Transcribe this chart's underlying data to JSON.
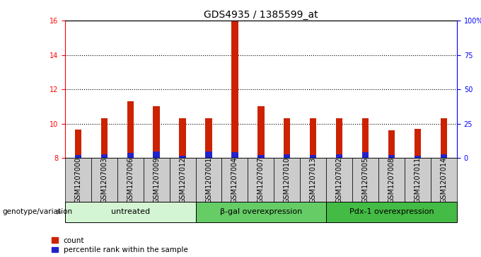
{
  "title": "GDS4935 / 1385599_at",
  "samples": [
    "GSM1207000",
    "GSM1207003",
    "GSM1207006",
    "GSM1207009",
    "GSM1207012",
    "GSM1207001",
    "GSM1207004",
    "GSM1207007",
    "GSM1207010",
    "GSM1207013",
    "GSM1207002",
    "GSM1207005",
    "GSM1207008",
    "GSM1207011",
    "GSM1207014"
  ],
  "counts": [
    9.65,
    10.3,
    11.3,
    11.0,
    10.3,
    10.3,
    16.0,
    11.0,
    10.3,
    10.3,
    10.3,
    10.3,
    9.6,
    9.7,
    10.3
  ],
  "percentile_tops": [
    8.18,
    8.22,
    8.28,
    8.38,
    8.12,
    8.38,
    8.32,
    8.18,
    8.22,
    8.18,
    8.22,
    8.32,
    8.18,
    8.12,
    8.22
  ],
  "base": 8.0,
  "ylim_left": [
    8,
    16
  ],
  "yticks_left": [
    8,
    10,
    12,
    14,
    16
  ],
  "ylim_right": [
    0,
    100
  ],
  "yticks_right": [
    0,
    25,
    50,
    75,
    100
  ],
  "groups": [
    {
      "label": "untreated",
      "start": 0,
      "end": 5,
      "color": "#d4f5d4"
    },
    {
      "label": "β-gal overexpression",
      "start": 5,
      "end": 10,
      "color": "#66cc66"
    },
    {
      "label": "Pdx-1 overexpression",
      "start": 10,
      "end": 15,
      "color": "#44bb44"
    }
  ],
  "bar_color": "#cc2200",
  "percentile_color": "#2222cc",
  "bar_width": 0.25,
  "tick_bg_color": "#cccccc",
  "group_label_y": "genotype/variation",
  "legend_count": "count",
  "legend_percentile": "percentile rank within the sample",
  "grid_color": "#000000",
  "title_fontsize": 10,
  "label_fontsize": 7.5,
  "tick_fontsize": 7,
  "group_fontsize": 8,
  "axis_left_color": "red",
  "axis_right_color": "blue"
}
